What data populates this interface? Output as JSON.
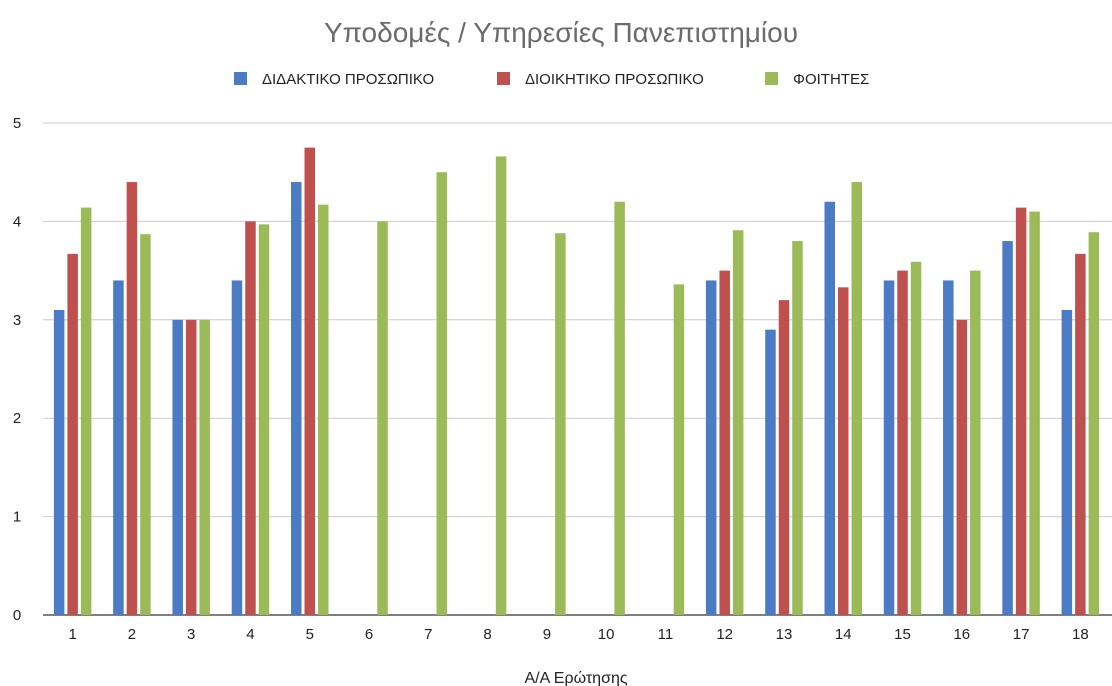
{
  "chart_data": {
    "type": "bar",
    "title": "Υποδομές / Υπηρεσίες Πανεπιστημίου",
    "xlabel": "Α/Α Ερώτησης",
    "ylabel": "",
    "ylim": [
      0,
      5
    ],
    "yticks": [
      "0",
      "1",
      "2",
      "3",
      "4",
      "5"
    ],
    "grid": true,
    "legend_position": "top",
    "categories": [
      "1",
      "2",
      "3",
      "4",
      "5",
      "6",
      "7",
      "8",
      "9",
      "10",
      "11",
      "12",
      "13",
      "14",
      "15",
      "16",
      "17",
      "18"
    ],
    "series": [
      {
        "name": "ΔΙΔΑΚΤΙΚΟ ΠΡΟΣΩΠΙΚΟ",
        "color": "#4a7bc4",
        "values": [
          3.1,
          3.4,
          3.0,
          3.4,
          4.4,
          null,
          null,
          null,
          null,
          null,
          null,
          3.4,
          2.9,
          4.2,
          3.4,
          3.4,
          3.8,
          3.1
        ]
      },
      {
        "name": "ΔΙΟΙΚΗΤΙΚΟ ΠΡΟΣΩΠΙΚΟ",
        "color": "#c0504d",
        "values": [
          3.67,
          4.4,
          3.0,
          4.0,
          4.75,
          null,
          null,
          null,
          null,
          null,
          null,
          3.5,
          3.2,
          3.33,
          3.5,
          3.0,
          4.14,
          3.67
        ]
      },
      {
        "name": "ΦΟΙΤΗΤΕΣ",
        "color": "#9bbb59",
        "values": [
          4.14,
          3.87,
          3.0,
          3.97,
          4.17,
          4.0,
          4.5,
          4.66,
          3.88,
          4.2,
          3.36,
          3.91,
          3.8,
          4.4,
          3.59,
          3.5,
          4.1,
          3.89
        ]
      }
    ]
  }
}
